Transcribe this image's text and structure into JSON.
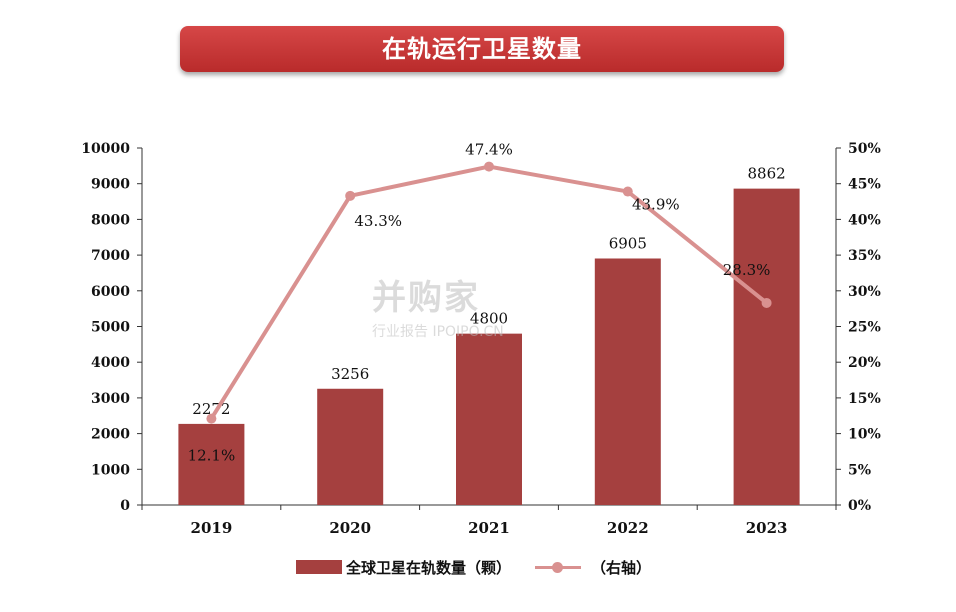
{
  "title": "在轨运行卫星数量",
  "chart_data": {
    "type": "bar",
    "categories": [
      "2019",
      "2020",
      "2021",
      "2022",
      "2023"
    ],
    "series": [
      {
        "name": "全球卫星在轨数量（颗）",
        "type": "bar",
        "axis": "left",
        "values": [
          2272,
          3256,
          4800,
          6905,
          8862
        ],
        "labels": [
          "2272",
          "3256",
          "4800",
          "6905",
          "8862"
        ],
        "color": "#a5403f"
      },
      {
        "name": "（右轴）",
        "type": "line",
        "axis": "right",
        "values": [
          12.1,
          43.3,
          47.4,
          43.9,
          28.3
        ],
        "labels": [
          "12.1%",
          "43.3%",
          "47.4%",
          "43.9%",
          "28.3%"
        ],
        "color": "#d99190"
      }
    ],
    "yleft": {
      "min": 0,
      "max": 10000,
      "ticks": [
        "0",
        "1000",
        "2000",
        "3000",
        "4000",
        "5000",
        "6000",
        "7000",
        "8000",
        "9000",
        "10000"
      ]
    },
    "yright": {
      "min": 0,
      "max": 50,
      "ticks": [
        "0%",
        "5%",
        "10%",
        "15%",
        "20%",
        "25%",
        "30%",
        "35%",
        "40%",
        "45%",
        "50%"
      ]
    },
    "legend_position": "bottom",
    "grid": false
  },
  "watermark": {
    "main": "并购家",
    "sub": "行业报告 IPOIPO.CN"
  }
}
